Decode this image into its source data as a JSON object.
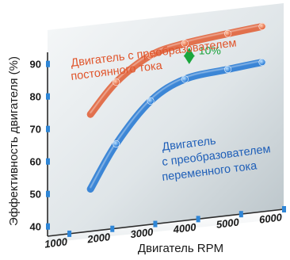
{
  "chart_data": {
    "type": "line",
    "title": "",
    "xlabel": "Двигатель RPM",
    "ylabel": "Эффективность двигателя (%)",
    "x_ticks": [
      "1000",
      "2000",
      "3000",
      "4000",
      "5000",
      "6000"
    ],
    "y_ticks": [
      "40",
      "50",
      "60",
      "70",
      "80",
      "90"
    ],
    "ylim": [
      37,
      97
    ],
    "xlim": [
      500,
      6000
    ],
    "grid": false,
    "series": [
      {
        "name": "Двигатель с преобразователем постоянного тока",
        "color": "#e05a30",
        "x": [
          1500,
          2100,
          2900,
          3700,
          4700,
          5500
        ],
        "y": [
          73,
          82,
          89,
          91.5,
          93,
          94
        ]
      },
      {
        "name": "Двигатель с преобразователем переменного тока",
        "color": "#1e74d2",
        "x": [
          1500,
          2100,
          2900,
          3700,
          4700,
          5500
        ],
        "y": [
          50,
          63,
          75,
          80.5,
          82,
          83
        ]
      }
    ],
    "annotation": {
      "label": "10%",
      "x": 3800,
      "y_from": 84,
      "y_to": 91
    },
    "series_labels": {
      "dc": [
        "Двигатель с преобразователем",
        "постоянного тока"
      ],
      "ac": [
        "Двигатель",
        "с преобразователем",
        "переменного тока"
      ]
    }
  }
}
